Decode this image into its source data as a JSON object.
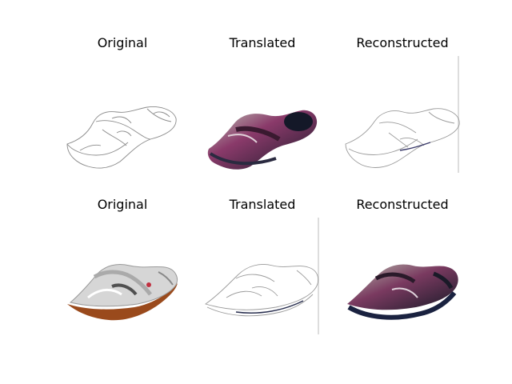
{
  "figure": {
    "rows": [
      {
        "panels": [
          {
            "title": "Original",
            "content": "edge-sketch of a sandal"
          },
          {
            "title": "Translated",
            "content": "colorized sandal"
          },
          {
            "title": "Reconstructed",
            "content": "edge-sketch of a sandal"
          }
        ]
      },
      {
        "panels": [
          {
            "title": "Original",
            "content": "photo of a sandal"
          },
          {
            "title": "Translated",
            "content": "edge-sketch of a sandal"
          },
          {
            "title": "Reconstructed",
            "content": "colorized sandal"
          }
        ]
      }
    ]
  },
  "colors": {
    "sketch_line": "#888888",
    "sole_brown": "#9a4a1c",
    "sandal_gray": "#cfcfcf",
    "dark_blue": "#1a2240",
    "magenta": "#b03070"
  }
}
